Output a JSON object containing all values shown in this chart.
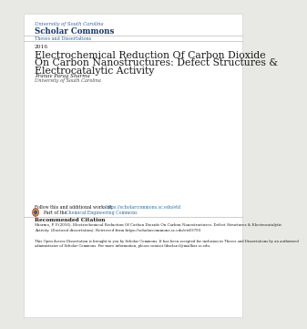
{
  "bg_color": "#e8e8e4",
  "page_bg": "#ffffff",
  "blue_dark": "#1a3a6b",
  "blue_medium": "#2e5fa3",
  "blue_link": "#2e6da4",
  "text_dark": "#1a1a1a",
  "text_gray": "#444444",
  "line_color": "#bbbbbb",
  "university": "University of South Carolina",
  "scholar": "Scholar Commons",
  "theses": "Theses and Dissertations",
  "year": "2016",
  "title_line1": "Electrochemical Reduction Of Carbon Dioxide",
  "title_line2": "On Carbon Nanostructures: Defect Structures &",
  "title_line3": "Electrocatalytic Activity",
  "author": "Pranav Parag Sharma",
  "affiliation": "University of South Carolina",
  "follow_text": "Follow this and additional works at: ",
  "follow_link": "https://scholarcommons.sc.edu/etd",
  "part_text": "Part of the ",
  "part_link": "Chemical Engineering Commons",
  "rec_citation": "Recommended Citation",
  "citation_line1": "Sharma, P. P.(2016). Electrochemical Reduction Of Carbon Dioxide On Carbon Nanostructures: Defect Structures & Electrocatalytic",
  "citation_line2": "Activity. (Doctoral dissertation). Retrieved from https://scholarcommons.sc.edu/etd/3793",
  "open_line1": "This Open Access Dissertation is brought to you by Scholar Commons. It has been accepted for inclusion in Theses and Dissertations by an authorized",
  "open_line2": "administrator of Scholar Commons. For more information, please contact libsclarcl@mailbox.sc.edu."
}
